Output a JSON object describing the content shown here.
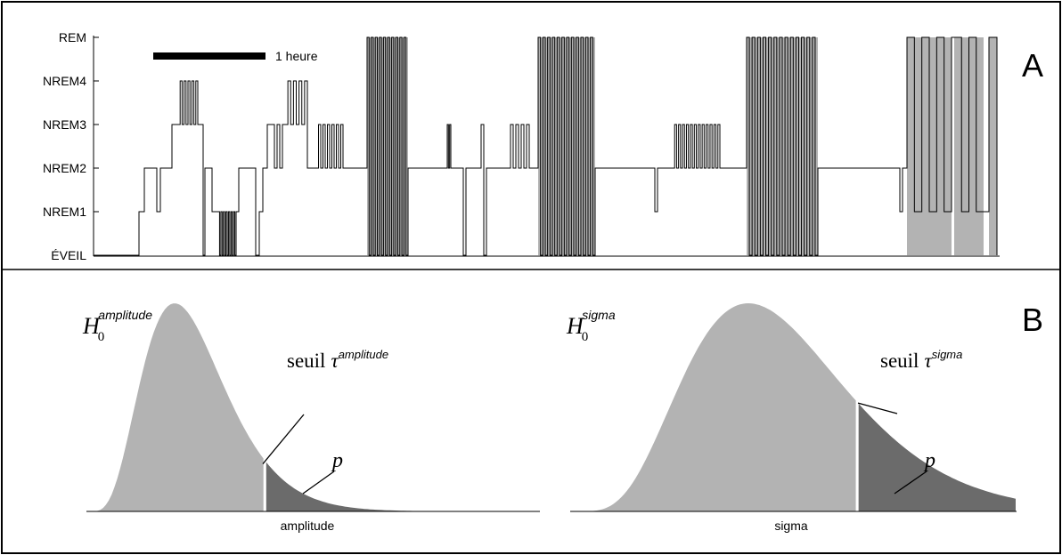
{
  "panel_a": {
    "label": "A",
    "y_ticks": [
      "ÉVEIL",
      "NREM1",
      "NREM2",
      "NREM3",
      "NREM4",
      "REM"
    ],
    "scale_bar_label": "1 heure",
    "colors": {
      "trace": "#000000",
      "rem_fill": "#b3b3b3",
      "frame": "#000000"
    }
  },
  "panel_b": {
    "label": "B",
    "left": {
      "h_base": "H",
      "h_sub": "0",
      "h_sup": "amplitude",
      "threshold_word": "seuil",
      "tau": "τ",
      "tau_sup": "amplitude",
      "p_label": "p",
      "xlabel": "amplitude"
    },
    "right": {
      "h_base": "H",
      "h_sub": "0",
      "h_sup": "sigma",
      "threshold_word": "seuil",
      "tau": "τ",
      "tau_sup": "sigma",
      "p_label": "p",
      "xlabel": "sigma"
    },
    "colors": {
      "curve_fill": "#b3b3b3",
      "tail_fill": "#6b6b6b"
    }
  }
}
